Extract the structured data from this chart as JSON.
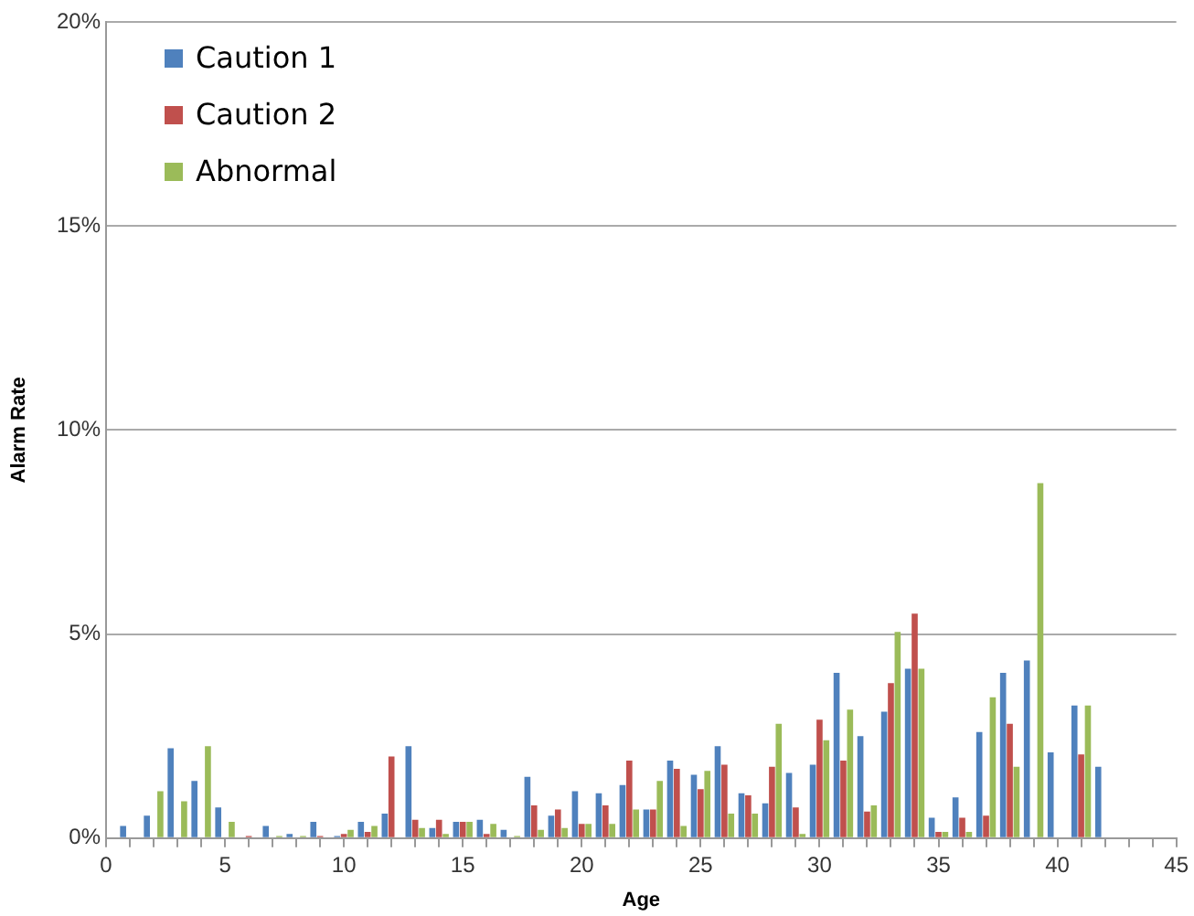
{
  "chart_data": {
    "type": "bar",
    "xlabel": "Age",
    "ylabel": "Alarm Rate",
    "x": [
      1,
      2,
      3,
      4,
      5,
      6,
      7,
      8,
      9,
      10,
      11,
      12,
      13,
      14,
      15,
      16,
      17,
      18,
      19,
      20,
      21,
      22,
      23,
      24,
      25,
      26,
      27,
      28,
      29,
      30,
      31,
      32,
      33,
      34,
      35,
      36,
      37,
      38,
      39,
      40,
      41,
      42
    ],
    "series": [
      {
        "name": "Caution 1",
        "color": "#4f81bd",
        "values": [
          0.3,
          0.55,
          2.2,
          1.4,
          0.75,
          0,
          0.3,
          0.1,
          0.4,
          0.05,
          0.4,
          0.6,
          2.25,
          0.25,
          0.4,
          0.45,
          0.2,
          1.5,
          0.55,
          1.15,
          1.1,
          1.3,
          0.7,
          1.9,
          1.55,
          2.25,
          1.1,
          0.85,
          1.6,
          1.8,
          4.05,
          2.5,
          3.1,
          4.15,
          0.5,
          1.0,
          2.6,
          4.05,
          4.35,
          2.1,
          3.25,
          1.75
        ]
      },
      {
        "name": "Caution 2",
        "color": "#c0504d",
        "values": [
          0,
          0,
          0,
          0,
          0,
          0.05,
          0,
          0,
          0.05,
          0.1,
          0.15,
          2.0,
          0.45,
          0.45,
          0.4,
          0.1,
          0,
          0.8,
          0.7,
          0.35,
          0.8,
          1.9,
          0.7,
          1.7,
          1.2,
          1.8,
          1.05,
          1.75,
          0.75,
          2.9,
          1.9,
          0.65,
          3.8,
          5.5,
          0.15,
          0.5,
          0.55,
          2.8,
          0,
          0,
          2.05,
          0
        ]
      },
      {
        "name": "Abnormal",
        "color": "#9bbb59",
        "values": [
          0,
          1.15,
          0.9,
          2.25,
          0.4,
          0,
          0.05,
          0.05,
          0,
          0.2,
          0.3,
          0,
          0.25,
          0.1,
          0.4,
          0.35,
          0.05,
          0.2,
          0.25,
          0.35,
          0.35,
          0.7,
          1.4,
          0.3,
          1.65,
          0.6,
          0.6,
          2.8,
          0.1,
          2.4,
          3.15,
          0.8,
          5.05,
          4.15,
          0.15,
          0.15,
          3.45,
          1.75,
          8.7,
          0,
          3.25,
          0
        ]
      }
    ],
    "xlim": [
      0,
      45
    ],
    "xticks": [
      0,
      {
        "value": 1,
        "label": null
      },
      {
        "value": 2,
        "label": null
      },
      {
        "value": 3,
        "label": null
      },
      {
        "value": 4,
        "label": null
      },
      5,
      {
        "value": 6,
        "label": null
      },
      {
        "value": 7,
        "label": null
      },
      {
        "value": 8,
        "label": null
      },
      {
        "value": 9,
        "label": null
      },
      10,
      {
        "value": 11,
        "label": null
      },
      {
        "value": 12,
        "label": null
      },
      {
        "value": 13,
        "label": null
      },
      {
        "value": 14,
        "label": null
      },
      15,
      {
        "value": 16,
        "label": null
      },
      {
        "value": 17,
        "label": null
      },
      {
        "value": 18,
        "label": null
      },
      {
        "value": 19,
        "label": null
      },
      20,
      {
        "value": 21,
        "label": null
      },
      {
        "value": 22,
        "label": null
      },
      {
        "value": 23,
        "label": null
      },
      {
        "value": 24,
        "label": null
      },
      25,
      {
        "value": 26,
        "label": null
      },
      {
        "value": 27,
        "label": null
      },
      {
        "value": 28,
        "label": null
      },
      {
        "value": 29,
        "label": null
      },
      30,
      {
        "value": 31,
        "label": null
      },
      {
        "value": 32,
        "label": null
      },
      {
        "value": 33,
        "label": null
      },
      {
        "value": 34,
        "label": null
      },
      35,
      {
        "value": 36,
        "label": null
      },
      {
        "value": 37,
        "label": null
      },
      {
        "value": 38,
        "label": null
      },
      {
        "value": 39,
        "label": null
      },
      40,
      {
        "value": 41,
        "label": null
      },
      {
        "value": 42,
        "label": null
      },
      {
        "value": 43,
        "label": null
      },
      {
        "value": 44,
        "label": null
      },
      45
    ],
    "ylim": [
      0,
      20
    ],
    "yticks": [
      {
        "value": 0,
        "label": "0%"
      },
      {
        "value": 5,
        "label": "5%"
      },
      {
        "value": 10,
        "label": "10%"
      },
      {
        "value": 15,
        "label": "15%"
      },
      {
        "value": 20,
        "label": "20%"
      }
    ],
    "grid": "y",
    "legend": "top left"
  }
}
